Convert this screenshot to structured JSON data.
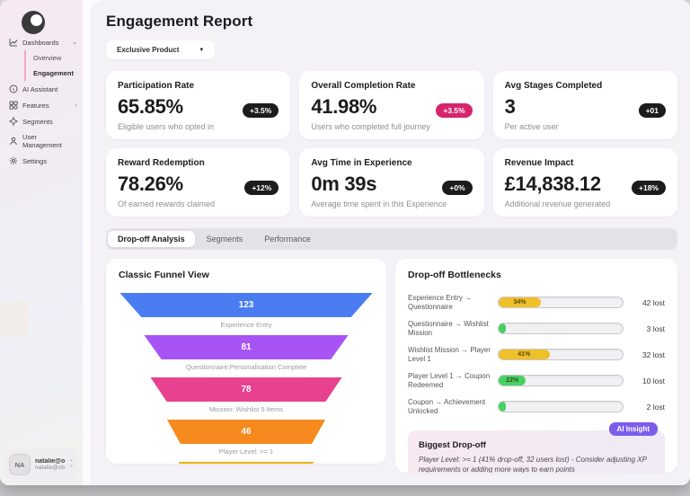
{
  "sidebar": {
    "nav": [
      {
        "label": "Dashboards",
        "icon": "chart-icon",
        "chevron": "down"
      },
      {
        "label": "AI Assistant",
        "icon": "assistant-icon"
      },
      {
        "label": "Features",
        "icon": "features-icon",
        "chevron": "right"
      },
      {
        "label": "Segments",
        "icon": "segments-icon"
      },
      {
        "label": "User Management",
        "icon": "user-icon"
      },
      {
        "label": "Settings",
        "icon": "gear-icon"
      }
    ],
    "subnav": [
      {
        "label": "Overview"
      },
      {
        "label": "Engagement",
        "active": true
      }
    ],
    "user": {
      "initials": "NA",
      "name": "natalie@ob...",
      "email": "natalie@obt.li..."
    }
  },
  "header": {
    "title": "Engagement Report",
    "filter": {
      "value": "Exclusive Product",
      "caret": "▼"
    }
  },
  "stats": [
    {
      "title": "Participation Rate",
      "value": "65.85%",
      "badge": "+3.5%",
      "badge_color": "#1c1c1e",
      "subtitle": "Eligible users who opted in"
    },
    {
      "title": "Overall Completion Rate",
      "value": "41.98%",
      "badge": "+3.5%",
      "badge_color": "#d6246e",
      "subtitle": "Users who completed full journey"
    },
    {
      "title": "Avg Stages Completed",
      "value": "3",
      "badge": "+01",
      "badge_color": "#1c1c1e",
      "subtitle": "Per active user"
    },
    {
      "title": "Reward Redemption",
      "value": "78.26%",
      "badge": "+12%",
      "badge_color": "#1c1c1e",
      "subtitle": "Of earned rewards claimed"
    },
    {
      "title": "Avg Time in Experience",
      "value": "0m 39s",
      "badge": "+0%",
      "badge_color": "#1c1c1e",
      "subtitle": "Average time spent in this Experience"
    },
    {
      "title": "Revenue Impact",
      "value": "£14,838.12",
      "badge": "+18%",
      "badge_color": "#1c1c1e",
      "subtitle": "Additional revenue generated"
    }
  ],
  "tabs": [
    {
      "label": "Drop-off Analysis",
      "active": true
    },
    {
      "label": "Segments"
    },
    {
      "label": "Performance"
    }
  ],
  "funnel": {
    "title": "Classic Funnel View",
    "segments": [
      {
        "value": "123",
        "label": "Experience Entry",
        "color": "#4b7df2"
      },
      {
        "value": "81",
        "label": "Questionnaire:Personalisation Complete",
        "color": "#a854f5"
      },
      {
        "value": "78",
        "label": "Mission: Wishlist 5 Items",
        "color": "#e8418f"
      },
      {
        "value": "46",
        "label": "Player Level: >= 1",
        "color": "#f68a1f"
      },
      {
        "value": "",
        "label": "",
        "color": "#e9b512"
      }
    ]
  },
  "bottlenecks": {
    "title": "Drop-off Bottlenecks",
    "rows": [
      {
        "label": "Experience Entry → Questionnaire",
        "pct_label": "34%",
        "pct_width": "34%",
        "color": "#eec02a",
        "lost": "42 lost"
      },
      {
        "label": "Questionnaire → Wishlist Mission",
        "pct_label": "",
        "pct_width": "4%",
        "color": "#47d163",
        "lost": "3 lost"
      },
      {
        "label": "Wishlist Mission → Player Level 1",
        "pct_label": "41%",
        "pct_width": "41%",
        "color": "#eec02a",
        "lost": "32 lost"
      },
      {
        "label": "Player Level 1 → Coupon Redeemed",
        "pct_label": "22%",
        "pct_width": "22%",
        "color": "#47d163",
        "lost": "10 lost"
      },
      {
        "label": "Coupon → Achievement Unlocked",
        "pct_label": "",
        "pct_width": "4%",
        "color": "#47d163",
        "lost": "2 lost"
      }
    ]
  },
  "insight": {
    "badge": "AI Insight",
    "title": "Biggest Drop-off",
    "text": "Player Level: >= 1 (41% drop-off, 32 users lost) - Consider adjusting XP requirements or adding more ways to earn points"
  },
  "colors": {
    "accent_pink": "#d6246e",
    "ai_purple": "#7c5ced",
    "warn_yellow": "#eec02a",
    "ok_green": "#47d163"
  }
}
